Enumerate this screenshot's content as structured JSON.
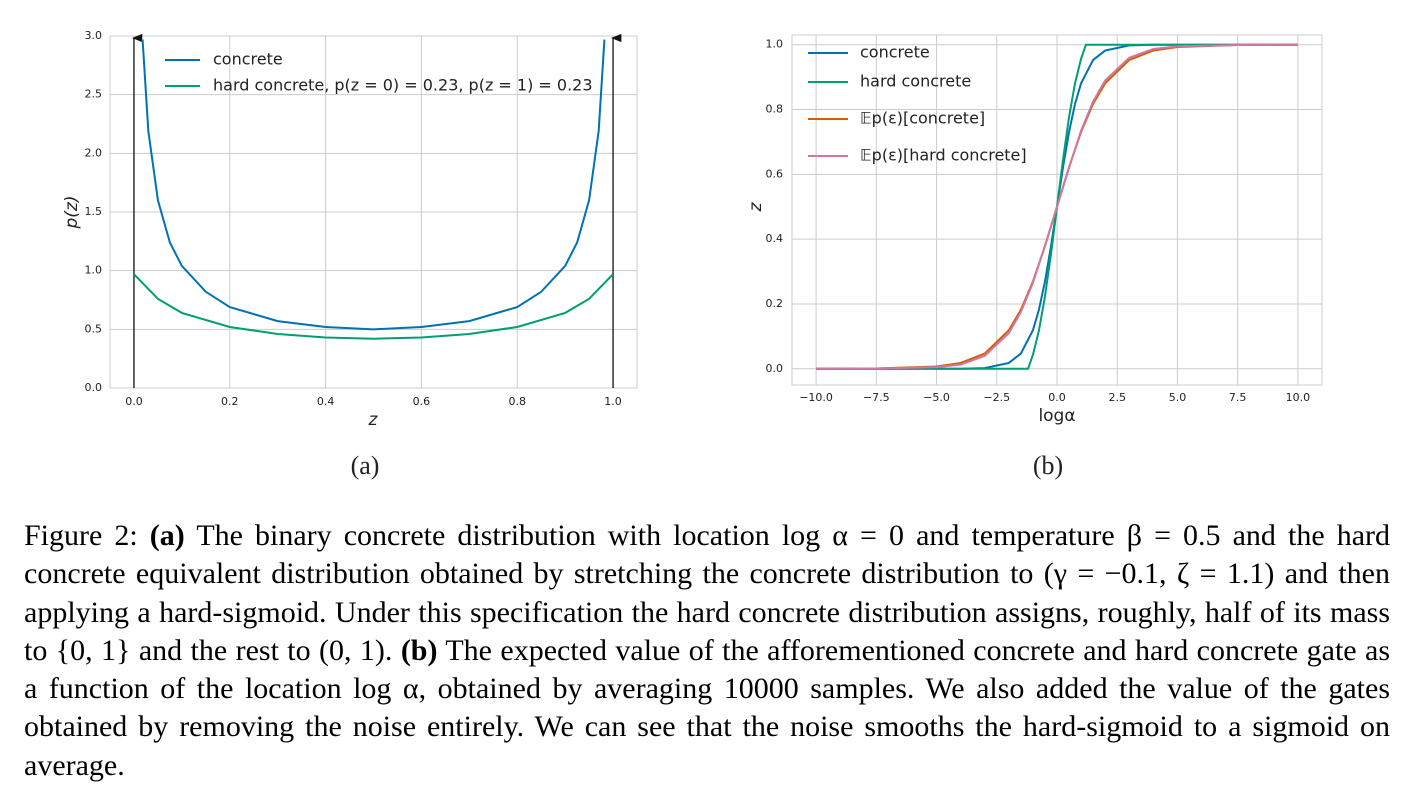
{
  "chart_data": [
    {
      "type": "line",
      "label": "(a)",
      "x_label": "z",
      "y_label": "p(z)",
      "xlim": [
        -0.05,
        1.05
      ],
      "ylim": [
        0,
        3
      ],
      "xticks": [
        {
          "value": 0,
          "label": "0.0"
        },
        0.2,
        0.4,
        0.6,
        0.8,
        {
          "value": 1,
          "label": "1.0"
        }
      ],
      "yticks": [
        {
          "value": 0,
          "label": "0.0"
        },
        0.5,
        {
          "value": 1,
          "label": "1.0"
        },
        1.5,
        {
          "value": 2,
          "label": "2.0"
        },
        2.5,
        {
          "value": 3,
          "label": "3.0"
        }
      ],
      "grid": true,
      "legend": "upper left",
      "arrows_x": [
        0,
        1
      ],
      "series": [
        {
          "name": "concrete",
          "color": "#0072b2",
          "x": [
            0.018,
            0.03,
            0.05,
            0.075,
            0.1,
            0.15,
            0.2,
            0.3,
            0.4,
            0.5,
            0.6,
            0.7,
            0.8,
            0.85,
            0.9,
            0.925,
            0.95,
            0.97,
            0.982
          ],
          "values": [
            2.97,
            2.19,
            1.6,
            1.24,
            1.04,
            0.82,
            0.69,
            0.57,
            0.52,
            0.5,
            0.52,
            0.57,
            0.69,
            0.82,
            1.04,
            1.24,
            1.6,
            2.19,
            2.97
          ]
        },
        {
          "name": "hard concrete, p(z = 0) = 0.23, p(z = 1) = 0.23",
          "color": "#009e73",
          "x": [
            0,
            0.05,
            0.1,
            0.2,
            0.3,
            0.4,
            0.5,
            0.6,
            0.7,
            0.8,
            0.9,
            0.95,
            1
          ],
          "values": [
            0.97,
            0.76,
            0.64,
            0.52,
            0.46,
            0.43,
            0.42,
            0.43,
            0.46,
            0.52,
            0.64,
            0.76,
            0.97
          ]
        }
      ]
    },
    {
      "type": "line",
      "label": "(b)",
      "x_label": "logα",
      "y_label": "z",
      "xlim": [
        -11,
        11
      ],
      "ylim": [
        -0.05,
        1.03
      ],
      "xticks": [
        {
          "value": -10,
          "label": "−10.0"
        },
        {
          "value": -7.5,
          "label": "−7.5"
        },
        {
          "value": -5,
          "label": "−5.0"
        },
        {
          "value": -2.5,
          "label": "−2.5"
        },
        {
          "value": 0,
          "label": "0.0"
        },
        2.5,
        {
          "value": 5,
          "label": "5.0"
        },
        7.5,
        {
          "value": 10,
          "label": "10.0"
        }
      ],
      "yticks": [
        {
          "value": 0,
          "label": "0.0"
        },
        0.2,
        0.4,
        0.6,
        0.8,
        {
          "value": 1,
          "label": "1.0"
        }
      ],
      "grid": true,
      "legend": "upper left",
      "series": [
        {
          "name": "concrete",
          "color": "#0072b2",
          "x": [
            -10,
            -5,
            -4,
            -3,
            -2,
            -1.5,
            -1,
            -0.75,
            -0.5,
            -0.25,
            0,
            0.25,
            0.5,
            0.75,
            1,
            1.5,
            2,
            3,
            4,
            5,
            10
          ],
          "values": [
            0,
            0,
            0,
            0.002,
            0.018,
            0.047,
            0.119,
            0.182,
            0.269,
            0.378,
            0.5,
            0.622,
            0.731,
            0.818,
            0.881,
            0.953,
            0.982,
            0.998,
            1,
            1,
            1
          ]
        },
        {
          "name": "hard concrete",
          "color": "#009e73",
          "x": [
            -10,
            -1.2,
            -1,
            -0.75,
            -0.5,
            -0.25,
            0,
            0.25,
            0.5,
            0.75,
            1,
            1.2,
            10
          ],
          "values": [
            0,
            0,
            0.043,
            0.118,
            0.223,
            0.354,
            0.5,
            0.646,
            0.777,
            0.882,
            0.957,
            1,
            1
          ]
        },
        {
          "name": "𝔼p(ε)[concrete]",
          "color": "#d55e00",
          "x": [
            -10,
            -7.5,
            -5,
            -4,
            -3,
            -2,
            -1.5,
            -1,
            -0.5,
            0,
            0.5,
            1,
            1.5,
            2,
            3,
            4,
            5,
            7.5,
            10
          ],
          "values": [
            0,
            0.001,
            0.007,
            0.018,
            0.047,
            0.119,
            0.182,
            0.269,
            0.378,
            0.5,
            0.622,
            0.731,
            0.818,
            0.881,
            0.953,
            0.982,
            0.993,
            0.999,
            1
          ]
        },
        {
          "name": "𝔼p(ε)[hard concrete]",
          "color": "#cc79a7",
          "x": [
            -10,
            -7.5,
            -5,
            -4,
            -3,
            -2,
            -1.5,
            -1,
            -0.5,
            0,
            0.5,
            1,
            1.5,
            2,
            3,
            4,
            5,
            7.5,
            10
          ],
          "values": [
            0,
            0.001,
            0.005,
            0.013,
            0.04,
            0.11,
            0.175,
            0.265,
            0.38,
            0.5,
            0.62,
            0.735,
            0.825,
            0.89,
            0.96,
            0.987,
            0.995,
            0.999,
            1
          ]
        }
      ]
    }
  ],
  "caption": {
    "label": "Figure 2:",
    "a_tag": "(a)",
    "a_text": "The binary concrete distribution with location log α = 0 and temperature β = 0.5 and the hard concrete equivalent distribution obtained by stretching the concrete distribution to (γ = −0.1, ζ = 1.1) and then applying a hard-sigmoid. Under this specification the hard concrete distribution assigns, roughly, half of its mass to {0, 1} and the rest to (0, 1).",
    "b_tag": "(b)",
    "b_text": "The expected value of the afforementioned concrete and hard concrete gate as a function of the location log α, obtained by averaging 10000 samples. We also added the value of the gates obtained by removing the noise entirely. We can see that the noise smooths the hard-sigmoid to a sigmoid on average."
  }
}
